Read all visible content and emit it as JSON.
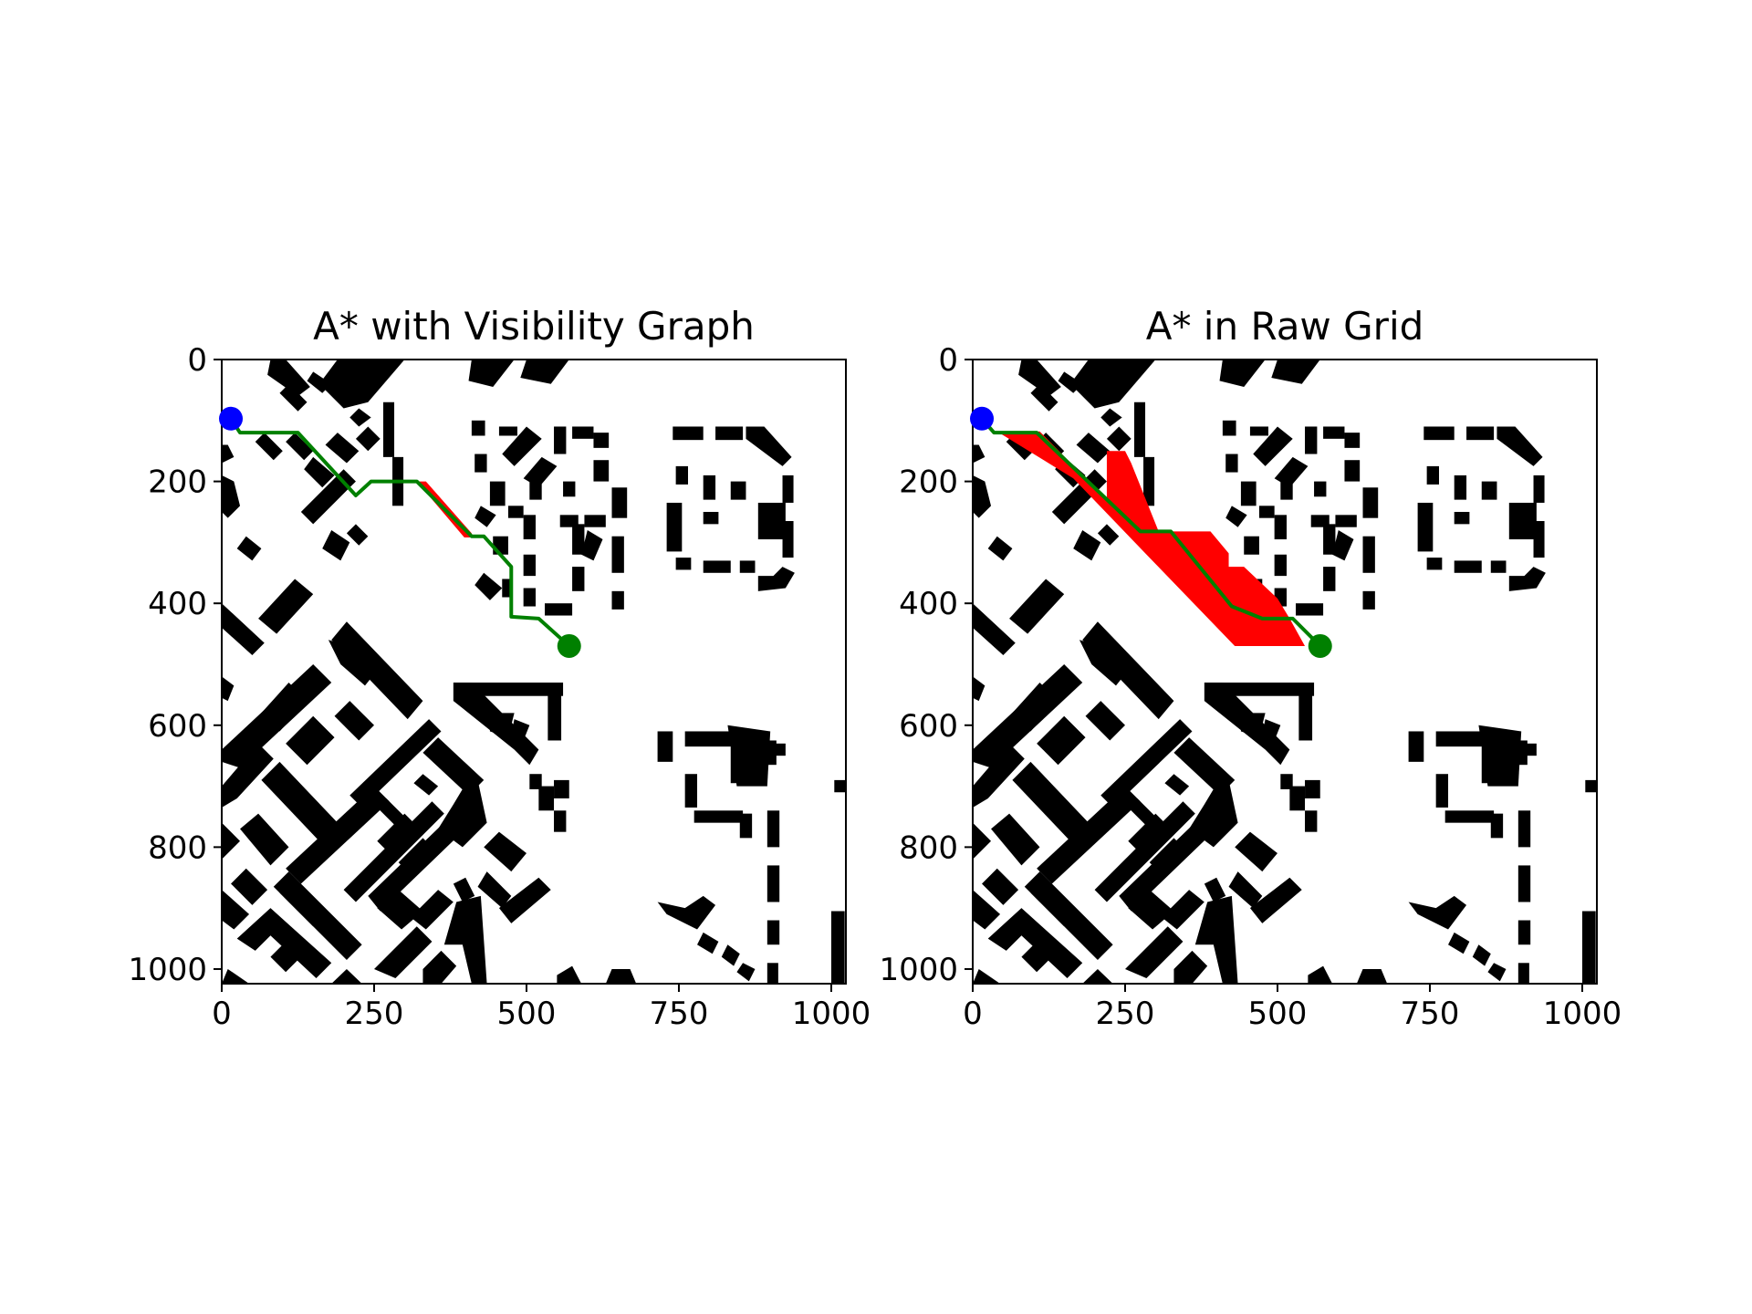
{
  "chart_data": [
    {
      "type": "path-map",
      "title": "A* with Visibility Graph",
      "xlabel": "",
      "ylabel": "",
      "xlim": [
        0,
        1024
      ],
      "ylim": [
        1024,
        0
      ],
      "xticks": [
        0,
        250,
        500,
        750,
        1000
      ],
      "yticks": [
        0,
        200,
        400,
        600,
        800,
        1000
      ],
      "grid": false,
      "start": {
        "x": 15,
        "y": 97,
        "color": "#0000ff"
      },
      "goal": {
        "x": 570,
        "y": 470,
        "color": "#008000"
      },
      "path": {
        "color": "#008000",
        "points": [
          [
            15,
            97
          ],
          [
            30,
            120
          ],
          [
            125,
            120
          ],
          [
            220,
            223
          ],
          [
            245,
            200
          ],
          [
            320,
            200
          ],
          [
            410,
            290
          ],
          [
            430,
            290
          ],
          [
            475,
            340
          ],
          [
            475,
            422
          ],
          [
            520,
            425
          ],
          [
            570,
            470
          ]
        ]
      },
      "explored": {
        "color": "#ff0000",
        "polygons": [
          [
            [
              320,
              200
            ],
            [
              335,
              200
            ],
            [
              410,
              285
            ],
            [
              410,
              292
            ],
            [
              398,
              292
            ]
          ]
        ]
      }
    },
    {
      "type": "path-map",
      "title": "A* in Raw Grid",
      "xlabel": "",
      "ylabel": "",
      "xlim": [
        0,
        1024
      ],
      "ylim": [
        1024,
        0
      ],
      "xticks": [
        0,
        250,
        500,
        750,
        1000
      ],
      "yticks": [
        0,
        200,
        400,
        600,
        800,
        1000
      ],
      "grid": false,
      "start": {
        "x": 15,
        "y": 97,
        "color": "#0000ff"
      },
      "goal": {
        "x": 570,
        "y": 470,
        "color": "#008000"
      },
      "path": {
        "color": "#008000",
        "points": [
          [
            15,
            97
          ],
          [
            35,
            120
          ],
          [
            105,
            120
          ],
          [
            275,
            282
          ],
          [
            325,
            282
          ],
          [
            425,
            405
          ],
          [
            475,
            425
          ],
          [
            525,
            425
          ],
          [
            570,
            470
          ]
        ]
      },
      "explored": {
        "color": "#ff0000",
        "polygons": [
          [
            [
              40,
              118
            ],
            [
              110,
              118
            ],
            [
              220,
              230
            ],
            [
              220,
              150
            ],
            [
              250,
              150
            ],
            [
              260,
              170
            ],
            [
              305,
              282
            ],
            [
              390,
              282
            ],
            [
              420,
              318
            ],
            [
              420,
              340
            ],
            [
              445,
              340
            ],
            [
              500,
              392
            ],
            [
              520,
              425
            ],
            [
              545,
              470
            ],
            [
              430,
              470
            ],
            [
              290,
              325
            ],
            [
              165,
              195
            ]
          ]
        ]
      }
    }
  ],
  "colors": {
    "obstacle": "#000000",
    "free": "#ffffff"
  }
}
